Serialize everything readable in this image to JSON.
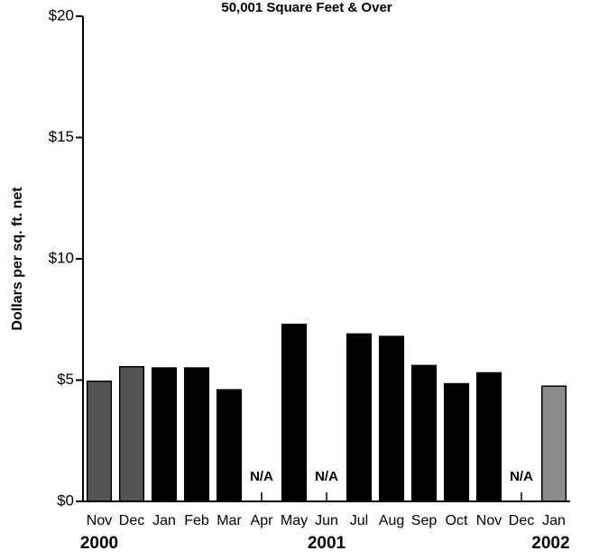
{
  "chart_data": {
    "type": "bar",
    "title": "50,001  Square Feet & Over",
    "y_label": "Dollars per sq. ft. net",
    "categories": [
      "Nov",
      "Dec",
      "Jan",
      "Feb",
      "Mar",
      "Apr",
      "May",
      "Jun",
      "Jul",
      "Aug",
      "Sep",
      "Oct",
      "Nov",
      "Dec",
      "Jan"
    ],
    "group_labels": [
      "2000",
      "2001",
      "2002"
    ],
    "values": [
      4.95,
      5.55,
      5.5,
      5.5,
      4.6,
      null,
      7.3,
      null,
      6.9,
      6.8,
      5.6,
      4.85,
      5.3,
      null,
      4.75
    ],
    "value_labels": [
      null,
      null,
      null,
      null,
      null,
      "N/A",
      null,
      "N/A",
      null,
      null,
      null,
      null,
      null,
      "N/A",
      null
    ],
    "colors": [
      "#555555",
      "#555555",
      "#000000",
      "#000000",
      "#000000",
      "#000000",
      "#000000",
      "#000000",
      "#000000",
      "#000000",
      "#000000",
      "#000000",
      "#000000",
      "#000000",
      "#8c8c8c"
    ],
    "ylim": [
      0,
      20
    ],
    "yticks": [
      {
        "value": 0,
        "label": "$0"
      },
      {
        "value": 5,
        "label": "$5"
      },
      {
        "value": 10,
        "label": "$10"
      },
      {
        "value": 15,
        "label": "$15"
      },
      {
        "value": 20,
        "label": "$20"
      }
    ]
  }
}
